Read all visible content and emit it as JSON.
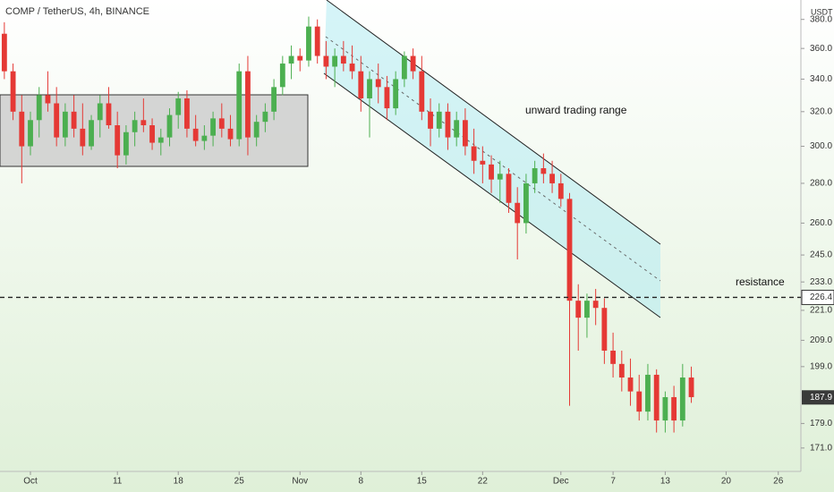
{
  "chart_data": {
    "type": "candlestick",
    "title": "COMP / TetherUS, 4h, BINANCE",
    "y_unit": "USDT",
    "log_scale": true,
    "up_color": "#4caf50",
    "down_color": "#e53935",
    "open": [
      370,
      345,
      320,
      300,
      315,
      330,
      325,
      305,
      320,
      310,
      300,
      315,
      325,
      312,
      295,
      308,
      315,
      312,
      302,
      305,
      318,
      328,
      310,
      303,
      306,
      316,
      310,
      304,
      345,
      305,
      314,
      320,
      335,
      350,
      355,
      352,
      375,
      355,
      348,
      355,
      350,
      345,
      328,
      340,
      335,
      322,
      340,
      355,
      345,
      320,
      310,
      320,
      305,
      315,
      300,
      292,
      290,
      282,
      285,
      270,
      260,
      280,
      288,
      285,
      280,
      272,
      225,
      218,
      225,
      222,
      205,
      200,
      195,
      190,
      183,
      196,
      180,
      188,
      180,
      195
    ],
    "high": [
      378,
      350,
      330,
      320,
      335,
      345,
      335,
      325,
      330,
      325,
      318,
      330,
      335,
      320,
      312,
      320,
      328,
      316,
      310,
      322,
      332,
      333,
      318,
      312,
      320,
      325,
      318,
      350,
      355,
      318,
      325,
      340,
      355,
      362,
      360,
      382,
      380,
      365,
      360,
      365,
      362,
      355,
      345,
      350,
      342,
      345,
      358,
      360,
      355,
      328,
      325,
      325,
      320,
      322,
      310,
      300,
      295,
      292,
      288,
      278,
      285,
      292,
      296,
      292,
      285,
      275,
      232,
      228,
      230,
      226,
      212,
      205,
      202,
      196,
      200,
      198,
      190,
      192,
      200,
      199
    ],
    "low": [
      340,
      315,
      280,
      295,
      305,
      320,
      300,
      300,
      305,
      295,
      298,
      305,
      310,
      288,
      290,
      300,
      308,
      298,
      295,
      300,
      310,
      305,
      300,
      298,
      300,
      305,
      300,
      300,
      295,
      300,
      308,
      315,
      330,
      340,
      345,
      348,
      350,
      340,
      335,
      345,
      340,
      320,
      305,
      325,
      315,
      318,
      335,
      340,
      315,
      300,
      305,
      298,
      300,
      295,
      285,
      280,
      275,
      270,
      265,
      243,
      255,
      275,
      280,
      275,
      268,
      185,
      205,
      210,
      215,
      200,
      195,
      190,
      185,
      180,
      180,
      176,
      176,
      176,
      178,
      186
    ],
    "close": [
      345,
      320,
      300,
      315,
      330,
      325,
      305,
      320,
      310,
      300,
      315,
      325,
      312,
      295,
      308,
      315,
      312,
      302,
      305,
      318,
      328,
      310,
      303,
      306,
      316,
      310,
      304,
      345,
      305,
      314,
      320,
      335,
      350,
      355,
      352,
      375,
      355,
      348,
      355,
      350,
      345,
      328,
      340,
      335,
      322,
      340,
      355,
      345,
      320,
      310,
      320,
      305,
      315,
      300,
      292,
      290,
      282,
      285,
      270,
      260,
      280,
      288,
      285,
      280,
      272,
      225,
      218,
      225,
      222,
      205,
      200,
      195,
      190,
      183,
      196,
      180,
      188,
      180,
      195,
      188
    ],
    "last_price": {
      "value": 187.9,
      "label": "187.9"
    },
    "resistance_level": {
      "value": 226.4,
      "label": "226.4"
    },
    "annotations": [
      "unward trading range",
      "resistance"
    ],
    "xlim": [
      -0.5,
      91.6
    ],
    "xticks": [
      {
        "value": 3,
        "label": "Oct"
      },
      {
        "value": 13,
        "label": "11"
      },
      {
        "value": 20,
        "label": "18"
      },
      {
        "value": 27,
        "label": "25"
      },
      {
        "value": 34,
        "label": "Nov"
      },
      {
        "value": 41,
        "label": "8"
      },
      {
        "value": 48,
        "label": "15"
      },
      {
        "value": 55,
        "label": "22"
      },
      {
        "value": 64,
        "label": "Dec"
      },
      {
        "value": 70,
        "label": "7"
      },
      {
        "value": 76,
        "label": "13"
      },
      {
        "value": 83,
        "label": "20"
      },
      {
        "value": 89,
        "label": "26"
      }
    ],
    "ylim": [
      163.7,
      394
    ],
    "yticks": [
      {
        "value": 380,
        "label": "380.0"
      },
      {
        "value": 360,
        "label": "360.0"
      },
      {
        "value": 340,
        "label": "340.0"
      },
      {
        "value": 320,
        "label": "320.0"
      },
      {
        "value": 300,
        "label": "300.0"
      },
      {
        "value": 280,
        "label": "280.0"
      },
      {
        "value": 260,
        "label": "260.0"
      },
      {
        "value": 245,
        "label": "245.0"
      },
      {
        "value": 233,
        "label": "233.0"
      },
      {
        "value": 221,
        "label": "221.0"
      },
      {
        "value": 209,
        "label": "209.0"
      },
      {
        "value": 199,
        "label": "199.0"
      },
      {
        "value": 179,
        "label": "179.0"
      },
      {
        "value": 171,
        "label": "171.0"
      }
    ]
  }
}
